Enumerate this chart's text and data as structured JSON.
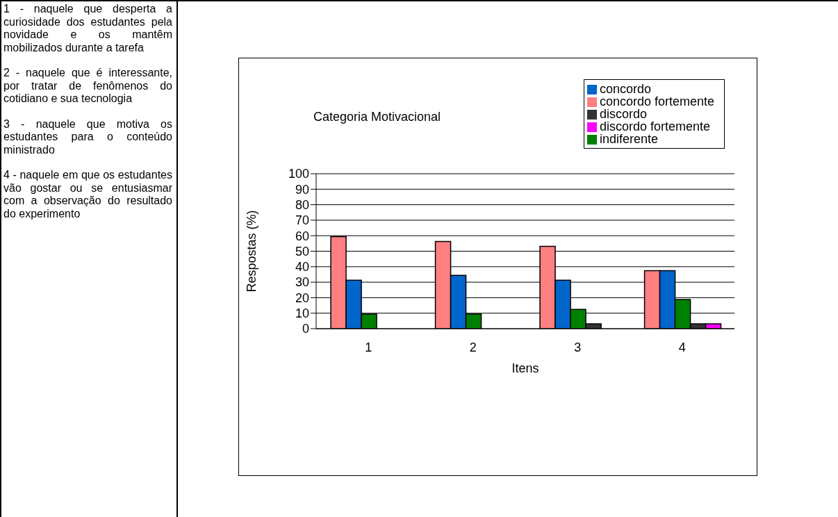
{
  "chart_data": {
    "type": "bar",
    "title": "Categoria Motivacional",
    "xlabel": "Itens",
    "ylabel": "Respostas (%)",
    "categories": [
      "1",
      "2",
      "3",
      "4"
    ],
    "series": [
      {
        "name": "concordo fortemente",
        "color": "#ff8080",
        "values": [
          59.4,
          56.3,
          53.1,
          37.5
        ]
      },
      {
        "name": "concordo",
        "color": "#0066cc",
        "values": [
          31.3,
          34.4,
          31.3,
          37.5
        ]
      },
      {
        "name": "indiferente",
        "color": "#008000",
        "values": [
          9.4,
          9.4,
          12.5,
          18.8
        ]
      },
      {
        "name": "discordo",
        "color": "#333333",
        "values": [
          null,
          null,
          3.1,
          3.1
        ]
      },
      {
        "name": "discordo fortemente",
        "color": "#ff00ff",
        "values": [
          null,
          null,
          null,
          3.1
        ]
      }
    ],
    "ylim": [
      0,
      100
    ],
    "yticks": [
      0,
      10,
      20,
      30,
      40,
      50,
      60,
      70,
      80,
      90,
      100
    ],
    "grid": "y",
    "legend": "top right",
    "annotations": [
      "1 - naquele que desperta a curiosidade dos estudantes pela novidade e os mantêm mobilizados durante a tarefa",
      "2 - naquele que é interessante, por tratar de fenômenos do cotidiano e sua tecnologia",
      "3 - naquele que motiva os estudantes para o conteúdo ministrado",
      "4 - naquele em que os estudantes vão gostar ou se entusiasmar com a observação do resultado do experimento"
    ]
  }
}
